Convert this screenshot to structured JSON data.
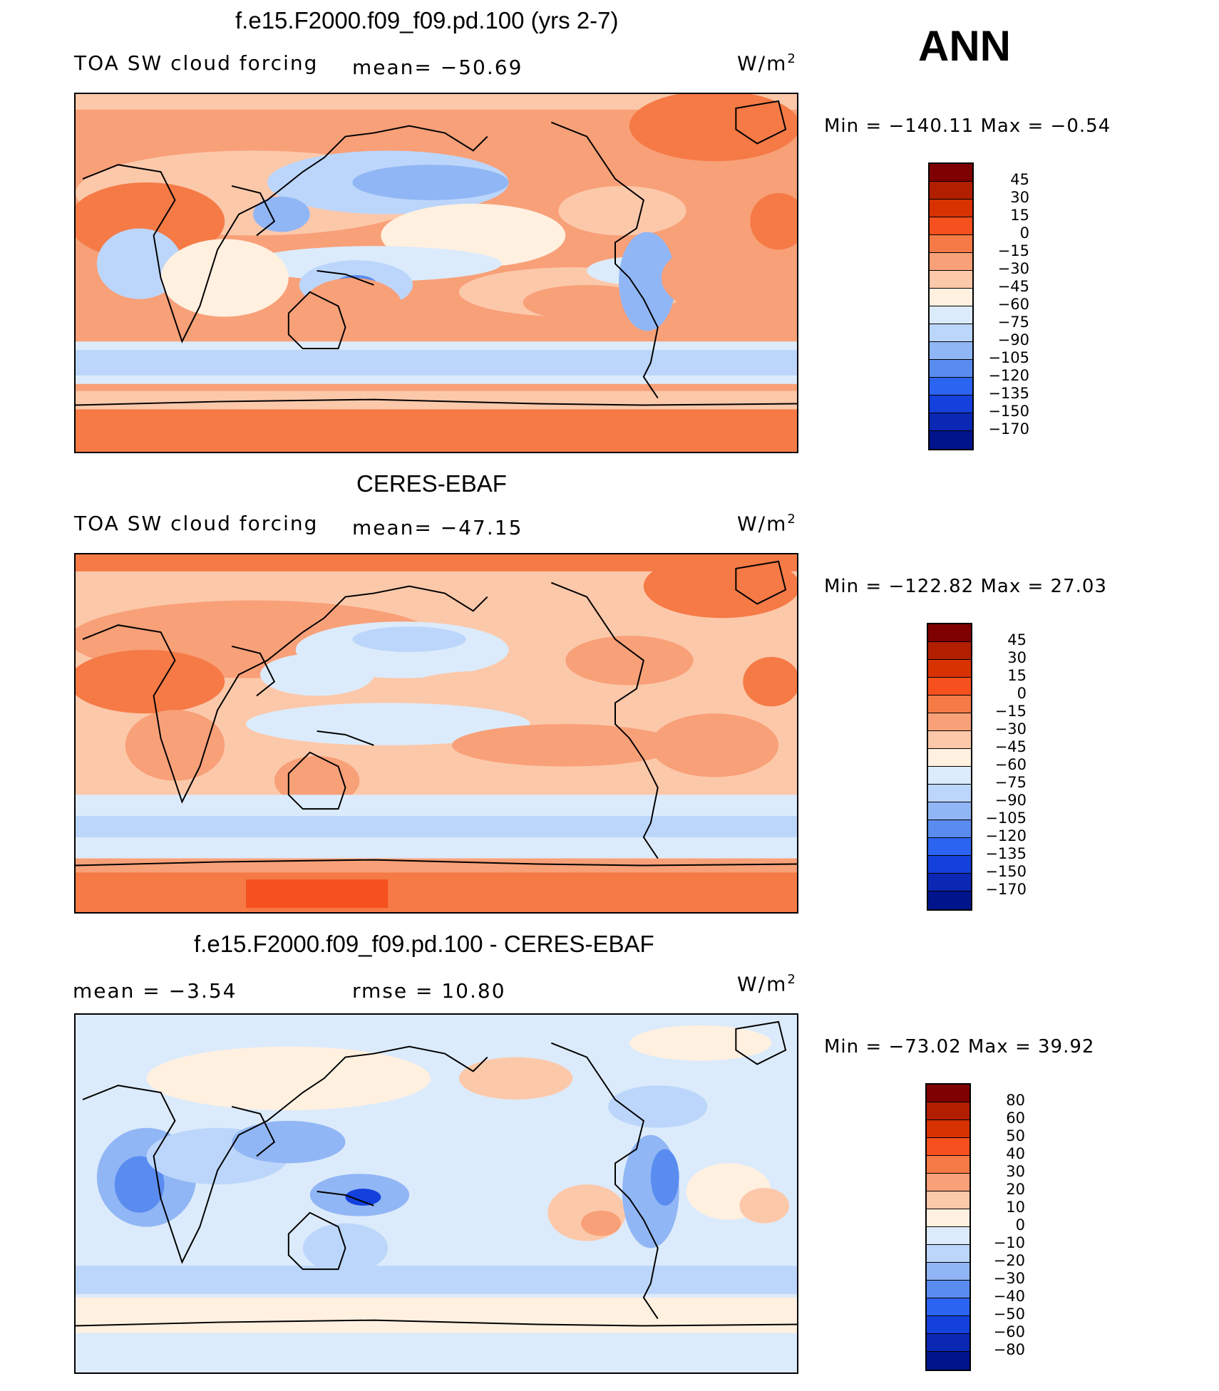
{
  "season": "ANN",
  "panels": [
    {
      "title": "f.e15.F2000.f09_f09.pd.100 (yrs 2-7)",
      "left_label": "TOA SW cloud forcing",
      "center_label": "mean= −50.69",
      "units": "W/m",
      "units_sup": "2",
      "minmax": "Min  =  −140.11  Max  =    −0.54",
      "colorbar": {
        "labels": [
          "45",
          "30",
          "15",
          "0",
          "−15",
          "−30",
          "−45",
          "−60",
          "−75",
          "−90",
          "−105",
          "−120",
          "−135",
          "−150",
          "−170"
        ],
        "colors": [
          "#7f0000",
          "#b21e00",
          "#d83200",
          "#f5501e",
          "#f57a46",
          "#f8a078",
          "#fcc8aa",
          "#fff0e0",
          "#dcebfb",
          "#bcd6fb",
          "#91b6f5",
          "#5a8cf0",
          "#2a64f0",
          "#1440dc",
          "#0a28b4",
          "#00148c"
        ]
      }
    },
    {
      "title": "CERES-EBAF",
      "left_label": "TOA SW cloud forcing",
      "center_label": "mean= −47.15",
      "units": "W/m",
      "units_sup": "2",
      "minmax": "Min  =  −122.82  Max  =    27.03",
      "colorbar": {
        "labels": [
          "45",
          "30",
          "15",
          "0",
          "−15",
          "−30",
          "−45",
          "−60",
          "−75",
          "−90",
          "−105",
          "−120",
          "−135",
          "−150",
          "−170"
        ],
        "colors": [
          "#7f0000",
          "#b21e00",
          "#d83200",
          "#f5501e",
          "#f57a46",
          "#f8a078",
          "#fcc8aa",
          "#fff0e0",
          "#dcebfb",
          "#bcd6fb",
          "#91b6f5",
          "#5a8cf0",
          "#2a64f0",
          "#1440dc",
          "#0a28b4",
          "#00148c"
        ]
      }
    },
    {
      "title": "f.e15.F2000.f09_f09.pd.100 - CERES-EBAF",
      "left_label": "mean  =    −3.54",
      "center_label": "rmse  =    10.80",
      "units": "W/m",
      "units_sup": "2",
      "minmax": "Min  =  −73.02  Max  =    39.92",
      "colorbar": {
        "labels": [
          "80",
          "60",
          "50",
          "40",
          "30",
          "20",
          "10",
          "0",
          "−10",
          "−20",
          "−30",
          "−40",
          "−50",
          "−60",
          "−80"
        ],
        "colors": [
          "#7f0000",
          "#b21e00",
          "#d83200",
          "#f5501e",
          "#f57a46",
          "#f8a078",
          "#fcc8aa",
          "#fff0e0",
          "#dcebfb",
          "#bcd6fb",
          "#91b6f5",
          "#5a8cf0",
          "#2a64f0",
          "#1440dc",
          "#0a28b4",
          "#00148c"
        ]
      }
    }
  ]
}
